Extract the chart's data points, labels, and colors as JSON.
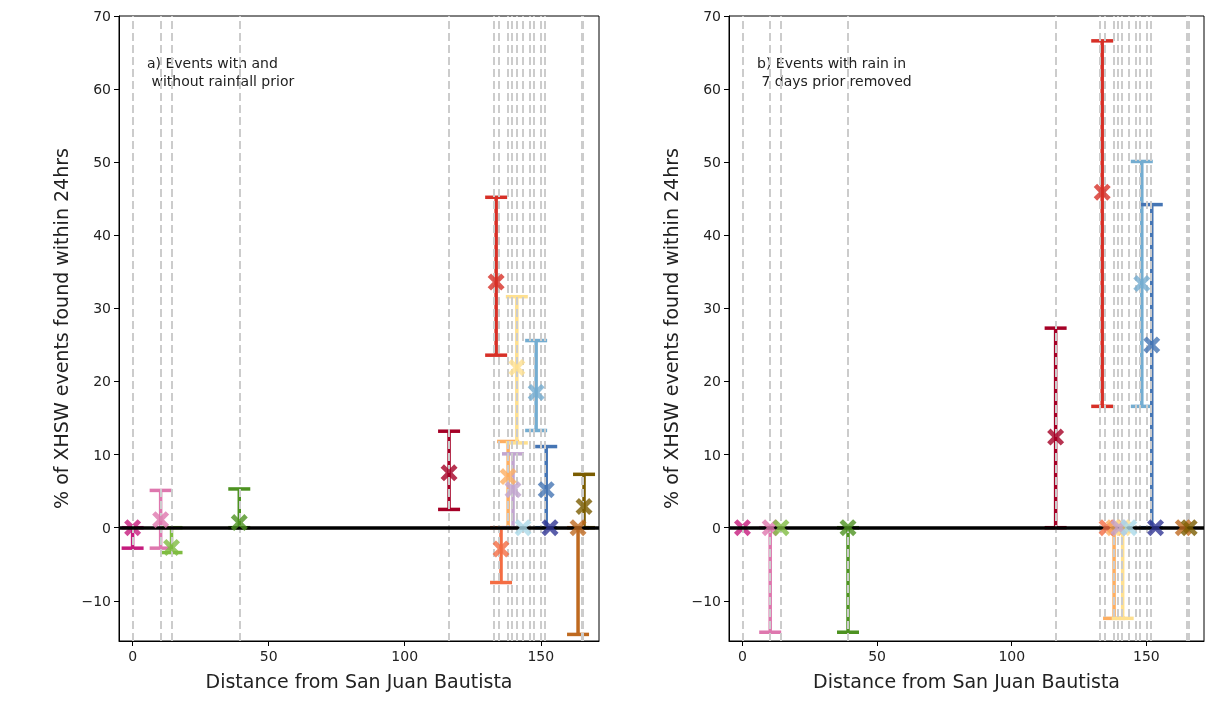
{
  "chart_data": [
    {
      "type": "scatter",
      "xlabel": "Distance from San Juan Bautista",
      "ylabel": "% of XHSW events found within 24hrs",
      "annotations": [
        "a) Events with and\n without rainfall prior"
      ],
      "xlim": [
        -5,
        171.4
      ],
      "ylim": [
        -15.5,
        70
      ],
      "xticks": [
        0,
        50,
        100,
        150
      ],
      "yticks": [
        {
          "value": -10,
          "label": "−10"
        },
        0,
        10,
        20,
        30,
        40,
        50,
        60,
        70
      ],
      "grid": false,
      "marker": "cross",
      "ref_lines": [
        {
          "axis": "x",
          "value": 0,
          "color": "#cccccc",
          "line_style": "dashed"
        },
        {
          "axis": "x",
          "value": 10.3,
          "color": "#cccccc",
          "line_style": "dashed"
        },
        {
          "axis": "x",
          "value": 14.3,
          "color": "#cccccc",
          "line_style": "dashed"
        },
        {
          "axis": "x",
          "value": 39.2,
          "color": "#cccccc",
          "line_style": "dashed"
        },
        {
          "axis": "x",
          "value": 116.3,
          "color": "#cccccc",
          "line_style": "dashed"
        },
        {
          "axis": "x",
          "value": 132.8,
          "color": "#cccccc",
          "line_style": "dashed"
        },
        {
          "axis": "x",
          "value": 134.4,
          "color": "#cccccc",
          "line_style": "dashed"
        },
        {
          "axis": "x",
          "value": 138,
          "color": "#cccccc",
          "line_style": "dashed"
        },
        {
          "axis": "x",
          "value": 139.5,
          "color": "#cccccc",
          "line_style": "dashed"
        },
        {
          "axis": "x",
          "value": 141,
          "color": "#cccccc",
          "line_style": "dashed"
        },
        {
          "axis": "x",
          "value": 143.3,
          "color": "#cccccc",
          "line_style": "dashed"
        },
        {
          "axis": "x",
          "value": 146,
          "color": "#cccccc",
          "line_style": "dashed"
        },
        {
          "axis": "x",
          "value": 147.5,
          "color": "#cccccc",
          "line_style": "dashed"
        },
        {
          "axis": "x",
          "value": 150,
          "color": "#cccccc",
          "line_style": "dashed"
        },
        {
          "axis": "x",
          "value": 151.5,
          "color": "#cccccc",
          "line_style": "dashed"
        },
        {
          "axis": "x",
          "value": 165,
          "color": "#cccccc",
          "line_style": "dashed"
        },
        {
          "axis": "x",
          "value": 165.6,
          "color": "#cccccc",
          "line_style": "dashed"
        },
        {
          "axis": "y",
          "value": 0,
          "color": "#000000",
          "line_style": "solid"
        }
      ],
      "series": [
        {
          "color": "#c51b7d",
          "x": [
            0
          ],
          "values": [
            0
          ],
          "errors": [
            [
              -2.8,
              0
            ]
          ]
        },
        {
          "color": "#de77ae",
          "x": [
            10.3
          ],
          "values": [
            1.1
          ],
          "errors": [
            [
              -2.8,
              5.1
            ]
          ]
        },
        {
          "color": "#7fbc41",
          "x": [
            14.3
          ],
          "values": [
            -2.7
          ],
          "errors": [
            [
              -3.4,
              0
            ]
          ]
        },
        {
          "color": "#4d9221",
          "x": [
            39.2
          ],
          "values": [
            0.7
          ],
          "errors": [
            [
              0,
              5.3
            ]
          ]
        },
        {
          "color": "#a50026",
          "x": [
            116.3
          ],
          "values": [
            7.5
          ],
          "errors": [
            [
              2.5,
              13.2
            ]
          ]
        },
        {
          "color": "#d73027",
          "x": [
            133.6
          ],
          "values": [
            33.6
          ],
          "errors": [
            [
              23.6,
              45.2
            ]
          ]
        },
        {
          "color": "#f46d43",
          "x": [
            135.4
          ],
          "values": [
            -2.9
          ],
          "errors": [
            [
              -7.5,
              0
            ]
          ]
        },
        {
          "color": "#fdae61",
          "x": [
            138
          ],
          "values": [
            7
          ],
          "errors": [
            [
              0,
              11.8
            ]
          ]
        },
        {
          "color": "#fee090",
          "x": [
            141.2
          ],
          "values": [
            21.9
          ],
          "errors": [
            [
              11.6,
              31.6
            ]
          ]
        },
        {
          "color": "#c2a5cf",
          "x": [
            139.8
          ],
          "values": [
            5.2
          ],
          "errors": [
            [
              0,
              10.1
            ]
          ]
        },
        {
          "color": "#abd9e9",
          "x": [
            143.5
          ],
          "values": [
            0
          ],
          "errors": [
            null
          ]
        },
        {
          "color": "#74add1",
          "x": [
            148.3
          ],
          "values": [
            18.5
          ],
          "errors": [
            [
              13.3,
              25.6
            ]
          ]
        },
        {
          "color": "#4575b4",
          "x": [
            152
          ],
          "values": [
            5.2
          ],
          "errors": [
            [
              0,
              11.1
            ]
          ]
        },
        {
          "color": "#313695",
          "x": [
            153.4
          ],
          "values": [
            0
          ],
          "errors": [
            null
          ]
        },
        {
          "color": "#bf6a20",
          "x": [
            163.7
          ],
          "values": [
            0
          ],
          "errors": [
            [
              -14.6,
              0
            ]
          ]
        },
        {
          "color": "#7a5c00",
          "x": [
            165.9
          ],
          "values": [
            2.9
          ],
          "errors": [
            [
              0,
              7.3
            ]
          ]
        }
      ]
    },
    {
      "type": "scatter",
      "xlabel": "Distance from San Juan Bautista",
      "ylabel": "% of XHSW events found within 24hrs",
      "annotations": [
        "b) Events with rain in\n 7 days prior removed"
      ],
      "xlim": [
        -5,
        171.4
      ],
      "ylim": [
        -15.5,
        70
      ],
      "xticks": [
        0,
        50,
        100,
        150
      ],
      "yticks": [
        {
          "value": -10,
          "label": "−10"
        },
        0,
        10,
        20,
        30,
        40,
        50,
        60,
        70
      ],
      "grid": false,
      "marker": "cross",
      "ref_lines": [
        {
          "axis": "x",
          "value": 0,
          "color": "#cccccc",
          "line_style": "dashed"
        },
        {
          "axis": "x",
          "value": 10.3,
          "color": "#cccccc",
          "line_style": "dashed"
        },
        {
          "axis": "x",
          "value": 14.3,
          "color": "#cccccc",
          "line_style": "dashed"
        },
        {
          "axis": "x",
          "value": 39.2,
          "color": "#cccccc",
          "line_style": "dashed"
        },
        {
          "axis": "x",
          "value": 116.3,
          "color": "#cccccc",
          "line_style": "dashed"
        },
        {
          "axis": "x",
          "value": 132.8,
          "color": "#cccccc",
          "line_style": "dashed"
        },
        {
          "axis": "x",
          "value": 134.4,
          "color": "#cccccc",
          "line_style": "dashed"
        },
        {
          "axis": "x",
          "value": 138,
          "color": "#cccccc",
          "line_style": "dashed"
        },
        {
          "axis": "x",
          "value": 139.5,
          "color": "#cccccc",
          "line_style": "dashed"
        },
        {
          "axis": "x",
          "value": 141,
          "color": "#cccccc",
          "line_style": "dashed"
        },
        {
          "axis": "x",
          "value": 143.3,
          "color": "#cccccc",
          "line_style": "dashed"
        },
        {
          "axis": "x",
          "value": 146,
          "color": "#cccccc",
          "line_style": "dashed"
        },
        {
          "axis": "x",
          "value": 147.5,
          "color": "#cccccc",
          "line_style": "dashed"
        },
        {
          "axis": "x",
          "value": 150,
          "color": "#cccccc",
          "line_style": "dashed"
        },
        {
          "axis": "x",
          "value": 151.5,
          "color": "#cccccc",
          "line_style": "dashed"
        },
        {
          "axis": "x",
          "value": 165,
          "color": "#cccccc",
          "line_style": "dashed"
        },
        {
          "axis": "x",
          "value": 165.6,
          "color": "#cccccc",
          "line_style": "dashed"
        },
        {
          "axis": "y",
          "value": 0,
          "color": "#000000",
          "line_style": "solid"
        }
      ],
      "series": [
        {
          "color": "#c51b7d",
          "x": [
            0
          ],
          "values": [
            0
          ],
          "errors": [
            null
          ]
        },
        {
          "color": "#de77ae",
          "x": [
            10.3
          ],
          "values": [
            0
          ],
          "errors": [
            [
              -14.3,
              0
            ]
          ]
        },
        {
          "color": "#7fbc41",
          "x": [
            14.3
          ],
          "values": [
            0
          ],
          "errors": [
            null
          ]
        },
        {
          "color": "#4d9221",
          "x": [
            39.2
          ],
          "values": [
            0
          ],
          "errors": [
            [
              -14.3,
              0
            ]
          ]
        },
        {
          "color": "#a50026",
          "x": [
            116.3
          ],
          "values": [
            12.4
          ],
          "errors": [
            [
              0,
              27.3
            ]
          ]
        },
        {
          "color": "#d73027",
          "x": [
            133.6
          ],
          "values": [
            45.9
          ],
          "errors": [
            [
              16.6,
              66.6
            ]
          ]
        },
        {
          "color": "#f46d43",
          "x": [
            135.4
          ],
          "values": [
            0
          ],
          "errors": [
            null
          ]
        },
        {
          "color": "#fdae61",
          "x": [
            138
          ],
          "values": [
            0
          ],
          "errors": [
            [
              -12.4,
              0
            ]
          ]
        },
        {
          "color": "#fee090",
          "x": [
            141.2
          ],
          "values": [
            0
          ],
          "errors": [
            [
              -12.4,
              0
            ]
          ]
        },
        {
          "color": "#c2a5cf",
          "x": [
            139.8
          ],
          "values": [
            0
          ],
          "errors": [
            null
          ]
        },
        {
          "color": "#abd9e9",
          "x": [
            143.5
          ],
          "values": [
            0
          ],
          "errors": [
            null
          ]
        },
        {
          "color": "#74add1",
          "x": [
            148.3
          ],
          "values": [
            33.4
          ],
          "errors": [
            [
              16.6,
              50.1
            ]
          ]
        },
        {
          "color": "#4575b4",
          "x": [
            152
          ],
          "values": [
            25
          ],
          "errors": [
            [
              0,
              44.2
            ]
          ]
        },
        {
          "color": "#313695",
          "x": [
            153.4
          ],
          "values": [
            0
          ],
          "errors": [
            null
          ]
        },
        {
          "color": "#bf6a20",
          "x": [
            163.7
          ],
          "values": [
            0
          ],
          "errors": [
            null
          ]
        },
        {
          "color": "#7a5c00",
          "x": [
            165.9
          ],
          "values": [
            0
          ],
          "errors": [
            null
          ]
        }
      ]
    }
  ]
}
